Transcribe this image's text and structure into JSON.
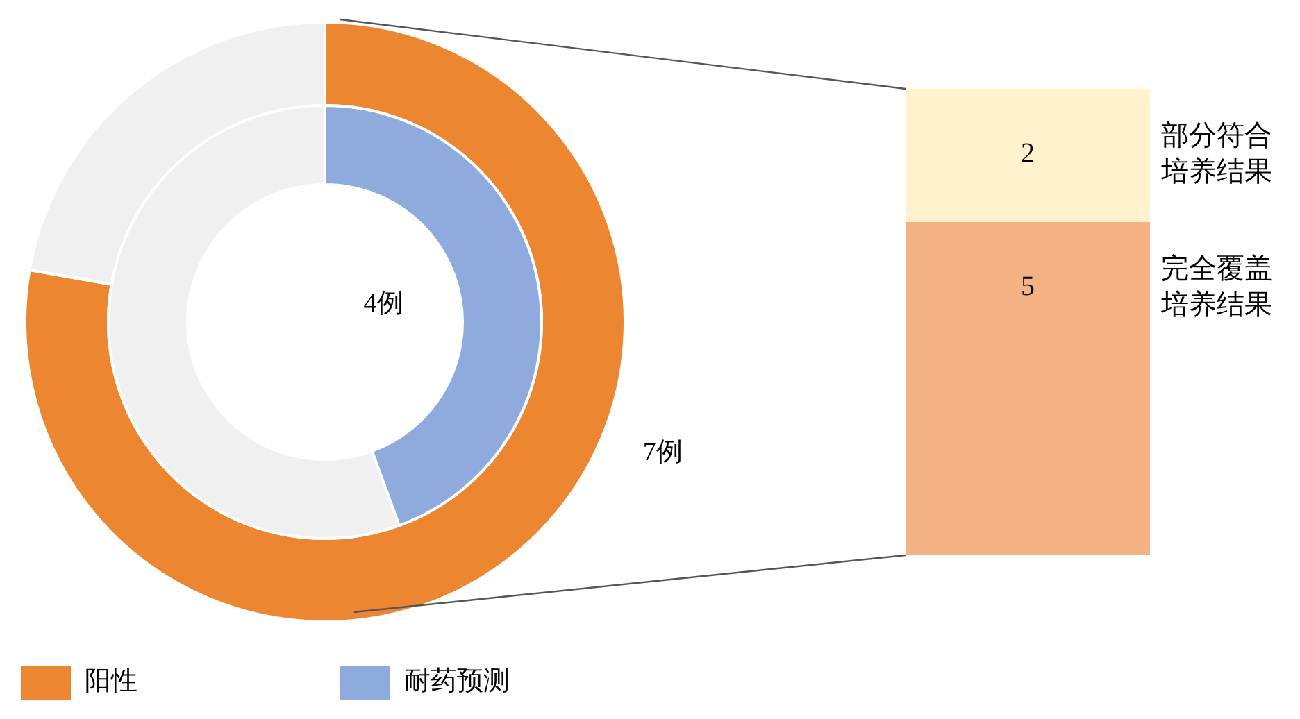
{
  "chart_data": [
    {
      "type": "donut",
      "categories": [
        null,
        null
      ],
      "legend": "bottom",
      "series": [
        {
          "name": "阳性",
          "color": "#ed8631",
          "colors": [
            "#ed8631",
            "#f0f0f0"
          ],
          "values": [
            7,
            2
          ],
          "value_labels": [
            "7例",
            null
          ]
        },
        {
          "name": "耐药预测",
          "color": "#8faadc",
          "colors": [
            "#8faadc",
            "#f0f0f0"
          ],
          "values": [
            4,
            5
          ],
          "value_labels": [
            "4例",
            null
          ]
        }
      ]
    },
    {
      "type": "bar",
      "stacked": true,
      "data_labels": true,
      "categories": [
        null
      ],
      "series": [
        {
          "name": "完全覆盖培养结果",
          "color": "#f4b183",
          "values": [
            5
          ]
        },
        {
          "name": "部分符合培养结果",
          "color": "#fff2cc",
          "values": [
            2
          ]
        }
      ]
    }
  ]
}
